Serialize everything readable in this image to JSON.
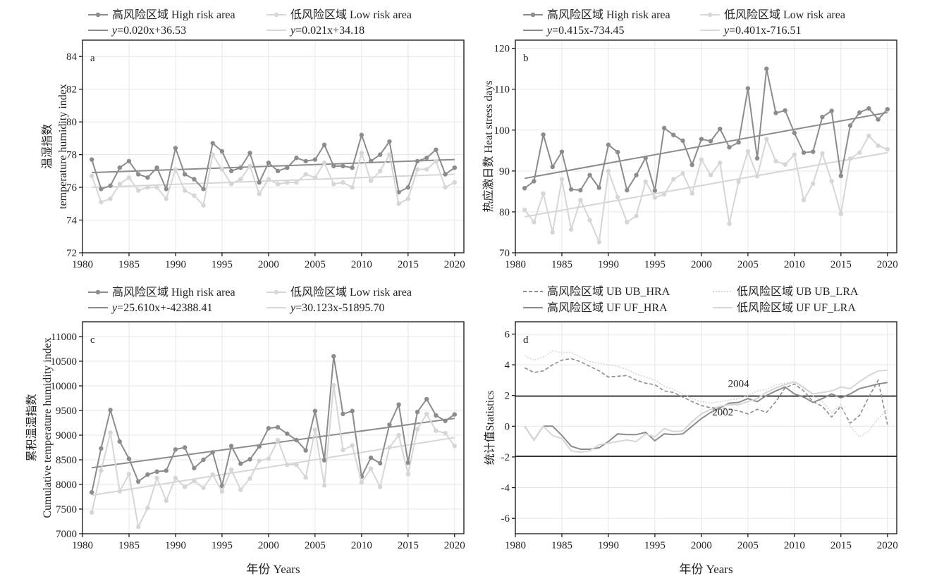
{
  "x_axis_label": "年份 Years",
  "colors": {
    "high": "#8c8c8c",
    "low": "#d6d6d6",
    "frame": "#111111",
    "grid": "#e6e6e6"
  },
  "chart_data": [
    {
      "type": "line",
      "panel_label": "a",
      "ylabel": [
        "温湿指数",
        "temperature humidity index"
      ],
      "xlim": [
        1980,
        2021
      ],
      "ylim": [
        72,
        85
      ],
      "x_ticks": [
        1980,
        1985,
        1990,
        1995,
        2000,
        2005,
        2010,
        2015,
        2020
      ],
      "y_ticks": [
        72,
        74,
        76,
        78,
        80,
        82,
        84
      ],
      "grid": true,
      "legend": {
        "placement": "top",
        "entries": [
          {
            "key": "high",
            "style": "line-marker",
            "label": "高风险区域 High risk area"
          },
          {
            "key": "low",
            "style": "line-marker",
            "label": "低风险区域 Low risk area"
          },
          {
            "key": "high",
            "style": "line",
            "label_em": "y",
            "label": "=0.020x+36.53"
          },
          {
            "key": "low",
            "style": "line",
            "label_em": "y",
            "label": "=0.021x+34.18"
          }
        ]
      },
      "x": [
        1981,
        1982,
        1983,
        1984,
        1985,
        1986,
        1987,
        1988,
        1989,
        1990,
        1991,
        1992,
        1993,
        1994,
        1995,
        1996,
        1997,
        1998,
        1999,
        2000,
        2001,
        2002,
        2003,
        2004,
        2005,
        2006,
        2007,
        2008,
        2009,
        2010,
        2011,
        2012,
        2013,
        2014,
        2015,
        2016,
        2017,
        2018,
        2019,
        2020
      ],
      "series": [
        {
          "key": "high",
          "name": "高风险区域 High risk area",
          "values": [
            77.7,
            75.9,
            76.1,
            77.2,
            77.6,
            76.8,
            76.6,
            77.2,
            75.9,
            78.4,
            76.8,
            76.5,
            75.9,
            78.7,
            78.2,
            77.0,
            77.2,
            78.1,
            76.3,
            77.5,
            77.0,
            77.2,
            77.8,
            77.6,
            77.7,
            78.6,
            77.3,
            77.3,
            77.2,
            79.2,
            77.6,
            78.0,
            78.8,
            75.7,
            76.0,
            77.6,
            77.8,
            78.3,
            76.8,
            77.2
          ]
        },
        {
          "key": "low",
          "name": "低风险区域 Low risk area",
          "values": [
            76.7,
            75.1,
            75.3,
            76.2,
            76.6,
            75.8,
            76.0,
            76.0,
            75.3,
            77.1,
            75.8,
            75.5,
            74.9,
            78.0,
            77.1,
            76.2,
            76.5,
            77.3,
            75.6,
            76.5,
            76.2,
            76.3,
            76.3,
            76.8,
            76.6,
            77.5,
            76.2,
            76.3,
            76.0,
            78.1,
            76.4,
            77.0,
            78.0,
            75.0,
            75.3,
            77.1,
            77.1,
            77.6,
            76.0,
            76.3
          ]
        }
      ],
      "trend_lines": [
        {
          "key": "high",
          "x": [
            1981,
            2020
          ],
          "y": [
            76.9,
            77.7
          ]
        },
        {
          "key": "low",
          "x": [
            1981,
            2020
          ],
          "y": [
            76.0,
            76.8
          ]
        }
      ]
    },
    {
      "type": "line",
      "panel_label": "b",
      "ylabel": [
        "热应激日数 Heat stress days"
      ],
      "xlim": [
        1980,
        2021
      ],
      "ylim": [
        70,
        122
      ],
      "x_ticks": [
        1980,
        1985,
        1990,
        1995,
        2000,
        2005,
        2010,
        2015,
        2020
      ],
      "y_ticks": [
        70,
        80,
        90,
        100,
        110,
        120
      ],
      "grid": true,
      "legend": {
        "placement": "top",
        "entries": [
          {
            "key": "high",
            "style": "line-marker",
            "label": "高风险区域 High risk area"
          },
          {
            "key": "low",
            "style": "line-marker",
            "label": "低风险区域 Low risk area"
          },
          {
            "key": "high",
            "style": "line",
            "label_em": "y",
            "label": "=0.415x-734.45"
          },
          {
            "key": "low",
            "style": "line",
            "label_em": "y",
            "label": "=0.401x-716.51"
          }
        ]
      },
      "x": [
        1981,
        1982,
        1983,
        1984,
        1985,
        1986,
        1987,
        1988,
        1989,
        1990,
        1991,
        1992,
        1993,
        1994,
        1995,
        1996,
        1997,
        1998,
        1999,
        2000,
        2001,
        2002,
        2003,
        2004,
        2005,
        2006,
        2007,
        2008,
        2009,
        2010,
        2011,
        2012,
        2013,
        2014,
        2015,
        2016,
        2017,
        2018,
        2019,
        2020
      ],
      "series": [
        {
          "key": "high",
          "name": "高风险区域 High risk area",
          "values": [
            85.8,
            87.5,
            98.9,
            91.0,
            94.7,
            85.5,
            85.3,
            89.0,
            85.9,
            96.4,
            94.6,
            85.3,
            89.0,
            93.2,
            85.2,
            100.5,
            98.8,
            97.4,
            91.5,
            97.8,
            97.3,
            100.3,
            95.8,
            97.0,
            110.2,
            93.1,
            115.0,
            104.2,
            104.8,
            99.3,
            94.5,
            94.7,
            103.2,
            104.7,
            88.8,
            101.1,
            104.3,
            105.3,
            102.6,
            105.1
          ]
        },
        {
          "key": "low",
          "name": "低风险区域 Low risk area",
          "values": [
            80.5,
            77.5,
            84.5,
            75.0,
            88.0,
            75.7,
            82.9,
            78.0,
            72.6,
            90.0,
            83.6,
            77.5,
            79.0,
            87.4,
            83.5,
            84.3,
            88.0,
            89.4,
            84.5,
            92.8,
            89.0,
            92.0,
            77.1,
            87.4,
            94.8,
            88.7,
            97.8,
            92.4,
            91.6,
            94.0,
            82.9,
            86.9,
            94.3,
            87.5,
            79.5,
            93.0,
            94.5,
            98.6,
            96.2,
            95.3
          ]
        }
      ],
      "trend_lines": [
        {
          "key": "high",
          "x": [
            1981,
            2020
          ],
          "y": [
            88.2,
            104.3
          ]
        },
        {
          "key": "low",
          "x": [
            1981,
            2020
          ],
          "y": [
            78.8,
            94.5
          ]
        }
      ]
    },
    {
      "type": "line",
      "panel_label": "c",
      "ylabel": [
        "累积温湿指数",
        "Cumulative temperature humidity index"
      ],
      "xlim": [
        1980,
        2021
      ],
      "ylim": [
        7000,
        11300
      ],
      "x_ticks": [
        1980,
        1985,
        1990,
        1995,
        2000,
        2005,
        2010,
        2015,
        2020
      ],
      "y_ticks": [
        7000,
        7500,
        8000,
        8500,
        9000,
        9500,
        10000,
        10500,
        11000
      ],
      "grid": true,
      "legend": {
        "placement": "top",
        "entries": [
          {
            "key": "high",
            "style": "line-marker",
            "label": "高风险区域 High risk area"
          },
          {
            "key": "low",
            "style": "line-marker",
            "label": "低风险区域 Low risk area"
          },
          {
            "key": "high",
            "style": "line",
            "label_em": "y",
            "label": "=25.610x+-42388.41"
          },
          {
            "key": "low",
            "style": "line",
            "label_em": "y",
            "label": "=30.123x-51895.70"
          }
        ]
      },
      "x": [
        1981,
        1982,
        1983,
        1984,
        1985,
        1986,
        1987,
        1988,
        1989,
        1990,
        1991,
        1992,
        1993,
        1994,
        1995,
        1996,
        1997,
        1998,
        1999,
        2000,
        2001,
        2002,
        2003,
        2004,
        2005,
        2006,
        2007,
        2008,
        2009,
        2010,
        2011,
        2012,
        2013,
        2014,
        2015,
        2016,
        2017,
        2018,
        2019,
        2020
      ],
      "series": [
        {
          "key": "high",
          "name": "高风险区域 High risk area",
          "values": [
            7840,
            8730,
            9510,
            8870,
            8520,
            8060,
            8200,
            8260,
            8280,
            8710,
            8750,
            8330,
            8500,
            8650,
            7970,
            8780,
            8420,
            8510,
            8770,
            9140,
            9160,
            9030,
            8900,
            8690,
            9490,
            8490,
            10600,
            9430,
            9490,
            8160,
            8540,
            8430,
            9210,
            9620,
            8440,
            9470,
            9730,
            9400,
            9290,
            9420
          ]
        },
        {
          "key": "low",
          "name": "低风险区域 Low risk area",
          "values": [
            7430,
            8280,
            9050,
            7860,
            8210,
            7140,
            7520,
            8130,
            7670,
            8130,
            7950,
            8070,
            7930,
            8200,
            7860,
            8300,
            7890,
            8120,
            8480,
            8520,
            8900,
            8400,
            8400,
            8140,
            9110,
            7980,
            10010,
            8700,
            8790,
            8040,
            8320,
            7950,
            8750,
            9000,
            8210,
            9120,
            9430,
            9090,
            9040,
            8780
          ]
        }
      ],
      "trend_lines": [
        {
          "key": "high",
          "x": [
            1981,
            2020
          ],
          "y": [
            8340,
            9340
          ]
        },
        {
          "key": "low",
          "x": [
            1981,
            2020
          ],
          "y": [
            7780,
            8950
          ]
        }
      ]
    },
    {
      "type": "line",
      "panel_label": "d",
      "ylabel": [
        "统计值Statistics"
      ],
      "xlim": [
        1980,
        2021
      ],
      "ylim": [
        -7,
        6.8
      ],
      "x_ticks": [
        1980,
        1985,
        1990,
        1995,
        2000,
        2005,
        2010,
        2015,
        2020
      ],
      "y_ticks": [
        -6,
        -4,
        -2,
        0,
        2,
        4,
        6
      ],
      "grid": true,
      "hlines": [
        1.96,
        -1.96
      ],
      "annotations": [
        {
          "text": "2004",
          "x": 2004,
          "y": 2.55
        },
        {
          "text": "2002",
          "x": 2002.3,
          "y": 0.7
        }
      ],
      "legend": {
        "placement": "top",
        "entries": [
          {
            "key": "high",
            "style": "dashed",
            "label": "高风险区域 UB UB_HRA"
          },
          {
            "key": "low",
            "style": "dotted",
            "label": "低风险区域 UB UB_LRA"
          },
          {
            "key": "high",
            "style": "line",
            "label": "高风险区域 UF UF_HRA"
          },
          {
            "key": "low",
            "style": "line",
            "label": "低风险区域 UF UF_LRA"
          }
        ]
      },
      "x": [
        1981,
        1982,
        1983,
        1984,
        1985,
        1986,
        1987,
        1988,
        1989,
        1990,
        1991,
        1992,
        1993,
        1994,
        1995,
        1996,
        1997,
        1998,
        1999,
        2000,
        2001,
        2002,
        2003,
        2004,
        2005,
        2006,
        2007,
        2008,
        2009,
        2010,
        2011,
        2012,
        2013,
        2014,
        2015,
        2016,
        2017,
        2018,
        2019,
        2020
      ],
      "series": [
        {
          "key": "high",
          "style": "dashed",
          "name": "高风险区域 UB UB_HRA",
          "values": [
            3.8,
            3.5,
            3.6,
            4.0,
            4.3,
            4.4,
            4.2,
            3.9,
            3.6,
            3.2,
            3.25,
            3.3,
            3.0,
            2.8,
            2.7,
            2.3,
            2.2,
            1.9,
            1.6,
            1.35,
            1.2,
            1.2,
            1.1,
            1.0,
            0.8,
            1.1,
            0.9,
            1.6,
            2.5,
            2.75,
            2.3,
            1.6,
            1.3,
            0.6,
            1.3,
            0.2,
            0.7,
            1.9,
            3.0,
            0.1
          ]
        },
        {
          "key": "low",
          "style": "dotted",
          "name": "低风险区域 UB UB_LRA",
          "values": [
            4.6,
            4.3,
            4.5,
            4.9,
            4.8,
            4.8,
            4.5,
            4.2,
            4.1,
            4.0,
            3.9,
            3.7,
            3.4,
            3.2,
            3.0,
            2.6,
            2.4,
            2.1,
            1.8,
            1.6,
            1.5,
            1.6,
            1.7,
            1.8,
            2.0,
            2.3,
            2.4,
            2.7,
            2.8,
            2.9,
            2.6,
            2.0,
            1.6,
            0.9,
            1.4,
            0.0,
            -0.7,
            -0.3,
            0.5,
            1.1
          ]
        },
        {
          "key": "high",
          "style": "solid",
          "name": "高风险区域 UF UF_HRA",
          "values": [
            0.0,
            -0.9,
            0.0,
            0.0,
            -0.6,
            -1.3,
            -1.5,
            -1.5,
            -1.4,
            -1.0,
            -0.5,
            -0.55,
            -0.55,
            -0.4,
            -0.95,
            -0.5,
            -0.55,
            -0.5,
            0.0,
            0.5,
            0.9,
            1.2,
            1.5,
            1.55,
            1.8,
            1.6,
            2.0,
            2.3,
            2.55,
            2.1,
            1.9,
            1.55,
            1.8,
            2.1,
            1.85,
            2.1,
            2.45,
            2.6,
            2.75,
            2.85
          ]
        },
        {
          "key": "low",
          "style": "solid",
          "name": "低风险区域 UF UF_LRA",
          "values": [
            0.0,
            -0.9,
            0.0,
            -0.6,
            -0.8,
            -1.6,
            -1.7,
            -1.6,
            -1.2,
            -1.1,
            -1.0,
            -0.9,
            -1.0,
            -0.5,
            -0.7,
            -0.15,
            -0.35,
            -0.3,
            0.3,
            0.8,
            1.1,
            1.3,
            1.4,
            1.4,
            1.6,
            1.8,
            2.2,
            2.5,
            2.7,
            2.9,
            2.5,
            2.1,
            2.2,
            2.3,
            2.55,
            2.45,
            2.9,
            3.3,
            3.6,
            3.65
          ]
        }
      ]
    }
  ]
}
